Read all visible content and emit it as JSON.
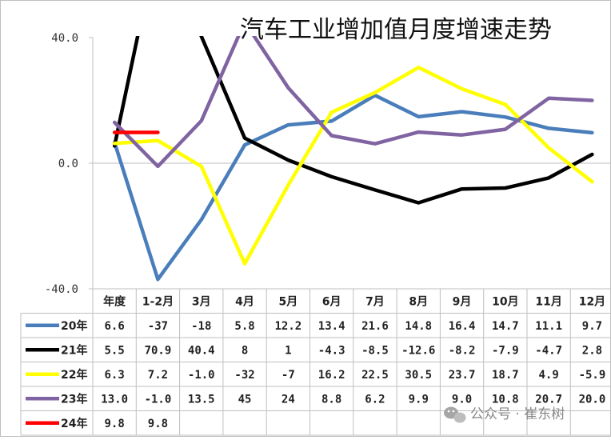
{
  "chart_data": {
    "type": "line",
    "title": "汽车工业增加值月度增速走势",
    "categories": [
      "年度",
      "1-2月",
      "3月",
      "4月",
      "5月",
      "6月",
      "7月",
      "8月",
      "9月",
      "10月",
      "11月",
      "12月"
    ],
    "ylim": [
      -40,
      40
    ],
    "yticks": [
      "40.0",
      "0.0",
      "-40.0"
    ],
    "grid": false,
    "legend": "table-left",
    "series": [
      {
        "name": "20年",
        "color": "#4a7ebb",
        "values": [
          6.6,
          -37,
          -18,
          5.8,
          12.2,
          13.4,
          21.6,
          14.8,
          16.4,
          14.7,
          11.1,
          9.7
        ],
        "labels": [
          "6.6",
          "-37",
          "-18",
          "5.8",
          "12.2",
          "13.4",
          "21.6",
          "14.8",
          "16.4",
          "14.7",
          "11.1",
          "9.7"
        ]
      },
      {
        "name": "21年",
        "color": "#000000",
        "values": [
          5.5,
          70.9,
          40.4,
          8,
          1,
          -4.3,
          -8.5,
          -12.6,
          -8.2,
          -7.9,
          -4.7,
          2.8
        ],
        "labels": [
          "5.5",
          "70.9",
          "40.4",
          "8",
          "1",
          "-4.3",
          "-8.5",
          "-12.6",
          "-8.2",
          "-7.9",
          "-4.7",
          "2.8"
        ]
      },
      {
        "name": "22年",
        "color": "#ffff00",
        "values": [
          6.3,
          7.2,
          -1.0,
          -32,
          -7,
          16.2,
          22.5,
          30.5,
          23.7,
          18.7,
          4.9,
          -5.9
        ],
        "labels": [
          "6.3",
          "7.2",
          "-1.0",
          "-32",
          "-7",
          "16.2",
          "22.5",
          "30.5",
          "23.7",
          "18.7",
          "4.9",
          "-5.9"
        ]
      },
      {
        "name": "23年",
        "color": "#8064a2",
        "values": [
          13.0,
          -1.0,
          13.5,
          45,
          24,
          8.8,
          6.2,
          9.9,
          9.0,
          10.8,
          20.7,
          20.0
        ],
        "labels": [
          "13.0",
          "-1.0",
          "13.5",
          "45",
          "24",
          "8.8",
          "6.2",
          "9.9",
          "9.0",
          "10.8",
          "20.7",
          "20.0"
        ]
      },
      {
        "name": "24年",
        "color": "#ff0000",
        "values": [
          9.8,
          9.8,
          null,
          null,
          null,
          null,
          null,
          null,
          null,
          null,
          null,
          null
        ],
        "labels": [
          "9.8",
          "9.8",
          "",
          "",
          "",
          "",
          "",
          "",
          "",
          "",
          "",
          ""
        ]
      }
    ]
  },
  "watermark": "公众号 · 崔东树"
}
